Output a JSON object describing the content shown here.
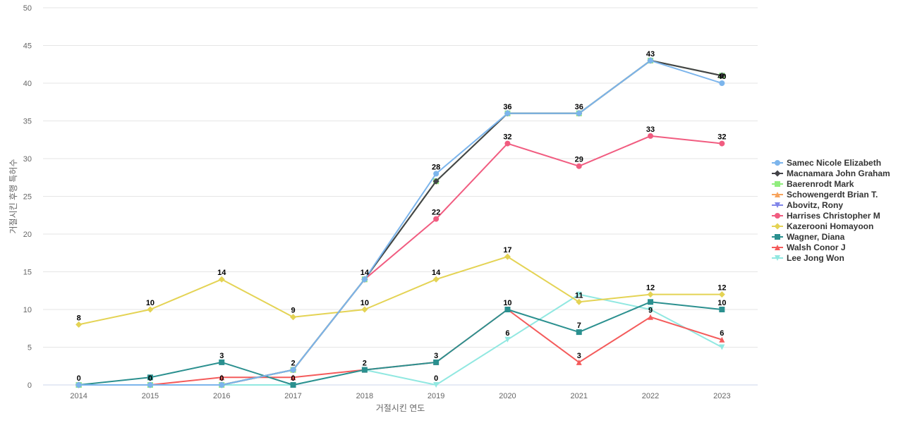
{
  "chart_data": {
    "type": "line",
    "xlabel": "거절시킨 연도",
    "ylabel": "거절시킨 후행 특허수",
    "ylim": [
      0,
      50
    ],
    "yticks": [
      0,
      5,
      10,
      15,
      20,
      25,
      30,
      35,
      40,
      45,
      50
    ],
    "categories": [
      "2014",
      "2015",
      "2016",
      "2017",
      "2018",
      "2019",
      "2020",
      "2021",
      "2022",
      "2023"
    ],
    "legend_position": "right",
    "grid": true,
    "series": [
      {
        "name": "Samec Nicole Elizabeth",
        "color": "#7cb5ec",
        "marker": "circle",
        "values": [
          0,
          0,
          0,
          2,
          14,
          28,
          36,
          36,
          43,
          40
        ]
      },
      {
        "name": "Macnamara John Graham",
        "color": "#434348",
        "marker": "diamond",
        "values": [
          0,
          0,
          0,
          2,
          14,
          27,
          36,
          36,
          43,
          41
        ]
      },
      {
        "name": "Baerenrodt Mark",
        "color": "#90ed7d",
        "marker": "square",
        "values": [
          0,
          0,
          0,
          2,
          14,
          27,
          36,
          36,
          43,
          41
        ]
      },
      {
        "name": "Schowengerdt Brian T.",
        "color": "#f7a35c",
        "marker": "triangle",
        "values": [
          0,
          0,
          0,
          2,
          14,
          27,
          36,
          36,
          43,
          41
        ]
      },
      {
        "name": "Abovitz, Rony",
        "color": "#8085e9",
        "marker": "triangle-down",
        "values": [
          0,
          0,
          0,
          2,
          14,
          27,
          36,
          36,
          43,
          41
        ]
      },
      {
        "name": "Harrises Christopher M",
        "color": "#f15c80",
        "marker": "circle",
        "values": [
          0,
          0,
          0,
          2,
          14,
          22,
          32,
          29,
          33,
          32
        ]
      },
      {
        "name": "Kazerooni Homayoon",
        "color": "#e4d354",
        "marker": "diamond",
        "values": [
          8,
          10,
          14,
          9,
          10,
          14,
          17,
          11,
          12,
          12
        ]
      },
      {
        "name": "Wagner, Diana",
        "color": "#2b908f",
        "marker": "square",
        "values": [
          0,
          1,
          3,
          0,
          2,
          3,
          10,
          7,
          11,
          10
        ]
      },
      {
        "name": "Walsh Conor J",
        "color": "#f45b5b",
        "marker": "triangle",
        "values": [
          0,
          0,
          1,
          1,
          2,
          3,
          10,
          3,
          9,
          6
        ]
      },
      {
        "name": "Lee Jong Won",
        "color": "#91e8e1",
        "marker": "triangle-down",
        "values": [
          0,
          0,
          0,
          0,
          2,
          0,
          6,
          12,
          10,
          5
        ]
      }
    ],
    "data_labels": [
      {
        "x": "2014",
        "text": "0",
        "value": 0
      },
      {
        "x": "2014",
        "text": "8",
        "value": 8
      },
      {
        "x": "2015",
        "text": "0",
        "value": 0
      },
      {
        "x": "2015",
        "text": "10",
        "value": 10
      },
      {
        "x": "2016",
        "text": "0",
        "value": 0
      },
      {
        "x": "2016",
        "text": "3",
        "value": 3
      },
      {
        "x": "2016",
        "text": "14",
        "value": 14
      },
      {
        "x": "2017",
        "text": "0",
        "value": 0
      },
      {
        "x": "2017",
        "text": "2",
        "value": 2
      },
      {
        "x": "2017",
        "text": "9",
        "value": 9
      },
      {
        "x": "2018",
        "text": "2",
        "value": 2
      },
      {
        "x": "2018",
        "text": "10",
        "value": 10
      },
      {
        "x": "2018",
        "text": "14",
        "value": 14
      },
      {
        "x": "2019",
        "text": "0",
        "value": 0
      },
      {
        "x": "2019",
        "text": "3",
        "value": 3
      },
      {
        "x": "2019",
        "text": "14",
        "value": 14
      },
      {
        "x": "2019",
        "text": "22",
        "value": 22
      },
      {
        "x": "2019",
        "text": "28",
        "value": 28
      },
      {
        "x": "2020",
        "text": "6",
        "value": 6
      },
      {
        "x": "2020",
        "text": "10",
        "value": 10
      },
      {
        "x": "2020",
        "text": "17",
        "value": 17
      },
      {
        "x": "2020",
        "text": "32",
        "value": 32
      },
      {
        "x": "2020",
        "text": "36",
        "value": 36
      },
      {
        "x": "2021",
        "text": "3",
        "value": 3
      },
      {
        "x": "2021",
        "text": "7",
        "value": 7
      },
      {
        "x": "2021",
        "text": "11",
        "value": 11
      },
      {
        "x": "2021",
        "text": "29",
        "value": 29
      },
      {
        "x": "2021",
        "text": "36",
        "value": 36
      },
      {
        "x": "2022",
        "text": "9",
        "value": 9
      },
      {
        "x": "2022",
        "text": "12",
        "value": 12
      },
      {
        "x": "2022",
        "text": "33",
        "value": 33
      },
      {
        "x": "2022",
        "text": "43",
        "value": 43
      },
      {
        "x": "2023",
        "text": "6",
        "value": 6
      },
      {
        "x": "2023",
        "text": "10",
        "value": 10
      },
      {
        "x": "2023",
        "text": "12",
        "value": 12
      },
      {
        "x": "2023",
        "text": "32",
        "value": 32
      },
      {
        "x": "2023",
        "text": "40",
        "value": 40
      }
    ]
  }
}
